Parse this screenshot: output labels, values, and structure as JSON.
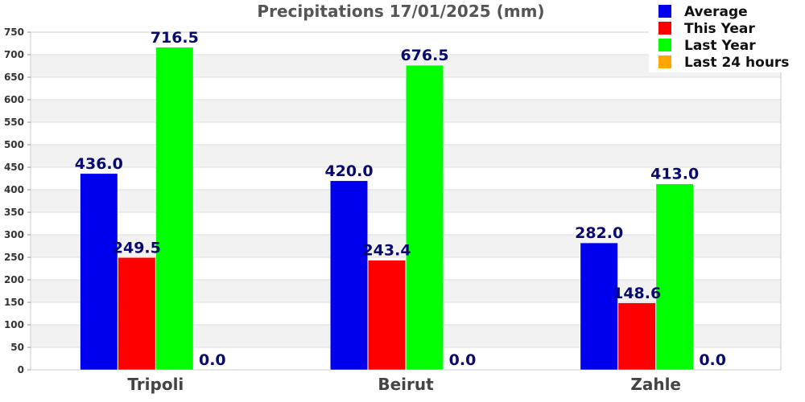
{
  "chart_data": {
    "type": "bar",
    "title": "Precipitations 17/01/2025 (mm)",
    "xlabel": "",
    "ylabel": "",
    "categories": [
      "Tripoli",
      "Beirut",
      "Zahle"
    ],
    "series": [
      {
        "name": "Average",
        "color": "#0000ee",
        "values": [
          436.0,
          420.0,
          282.0
        ],
        "labels": [
          "436.0",
          "420.0",
          "282.0"
        ]
      },
      {
        "name": "This Year",
        "color": "#ff0000",
        "values": [
          249.5,
          243.4,
          148.6
        ],
        "labels": [
          "249.5",
          "243.4",
          "148.6"
        ]
      },
      {
        "name": "Last Year",
        "color": "#00ff00",
        "values": [
          716.5,
          676.5,
          413.0
        ],
        "labels": [
          "716.5",
          "676.5",
          "413.0"
        ]
      },
      {
        "name": "Last 24 hours",
        "color": "#ffa500",
        "values": [
          0.0,
          0.0,
          0.0
        ],
        "labels": [
          "0.0",
          "0.0",
          "0.0"
        ]
      }
    ],
    "ylim": [
      0,
      750
    ],
    "yticks": [
      "0",
      "50",
      "100",
      "150",
      "200",
      "250",
      "300",
      "350",
      "400",
      "450",
      "500",
      "550",
      "600",
      "650",
      "700",
      "750"
    ],
    "grid": true,
    "legend_position": "top-right"
  }
}
